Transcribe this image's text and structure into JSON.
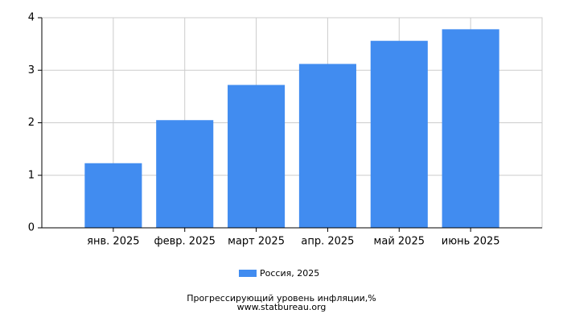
{
  "chart_data": {
    "type": "bar",
    "title": "Прогрессирующий уровень инфляции,%",
    "source": "www.statbureau.org",
    "categories": [
      "янв. 2025",
      "февр. 2025",
      "март 2025",
      "апр. 2025",
      "май 2025",
      "июнь 2025"
    ],
    "series": [
      {
        "name": "Россия, 2025",
        "color": "#418cf0",
        "values": [
          1.23,
          2.05,
          2.72,
          3.12,
          3.56,
          3.78
        ]
      }
    ],
    "ylim": [
      0,
      4
    ],
    "yticks": [
      0,
      1,
      2,
      3,
      4
    ],
    "grid": true,
    "legend": "bottom"
  }
}
